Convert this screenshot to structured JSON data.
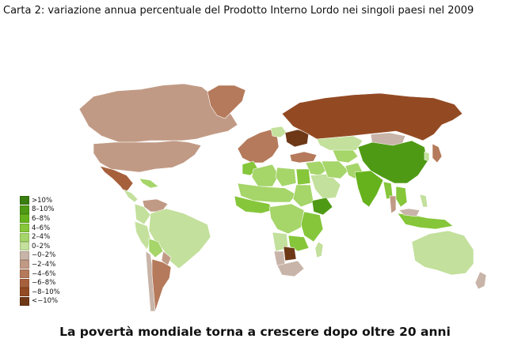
{
  "map": {
    "title": "Carta 2: variazione annua percentuale del Prodotto Interno Lordo nei singoli paesi nel 2009",
    "caption": "La povertà mondiale torna a crescere dopo oltre 20 anni",
    "legend": [
      {
        "label": ">10%",
        "color": "#3a7d10"
      },
      {
        "label": "8–10%",
        "color": "#4f9a14"
      },
      {
        "label": "6–8%",
        "color": "#66b21c"
      },
      {
        "label": "4–6%",
        "color": "#86c63a"
      },
      {
        "label": "2–4%",
        "color": "#a6d56a"
      },
      {
        "label": "0–2%",
        "color": "#c3e09c"
      },
      {
        "label": "−0–2%",
        "color": "#c8b4a8"
      },
      {
        "label": "−2–4%",
        "color": "#c19a85"
      },
      {
        "label": "−4–6%",
        "color": "#b57a5b"
      },
      {
        "label": "−6–8%",
        "color": "#a7603c"
      },
      {
        "label": "−8–10%",
        "color": "#934a23"
      },
      {
        "label": "<−10%",
        "color": "#6e3817"
      }
    ],
    "regions": [
      {
        "name": "Canada",
        "class": "−2–4%",
        "color": "#c19a85"
      },
      {
        "name": "Greenland",
        "class": "−4–6%",
        "color": "#b57a5b"
      },
      {
        "name": "United States",
        "class": "−2–4%",
        "color": "#c19a85"
      },
      {
        "name": "Mexico",
        "class": "−6–8%",
        "color": "#a7603c"
      },
      {
        "name": "Central America",
        "class": "0–2%",
        "color": "#c3e09c"
      },
      {
        "name": "Caribbean",
        "class": "2–4%",
        "color": "#a6d56a"
      },
      {
        "name": "Venezuela",
        "class": "−2–4%",
        "color": "#c19a85"
      },
      {
        "name": "Colombia",
        "class": "0–2%",
        "color": "#c3e09c"
      },
      {
        "name": "Brazil",
        "class": "0–2%",
        "color": "#c3e09c"
      },
      {
        "name": "Peru",
        "class": "0–2%",
        "color": "#c3e09c"
      },
      {
        "name": "Bolivia",
        "class": "2–4%",
        "color": "#a6d56a"
      },
      {
        "name": "Paraguay",
        "class": "−2–4%",
        "color": "#c19a85"
      },
      {
        "name": "Chile",
        "class": "−0–2%",
        "color": "#c8b4a8"
      },
      {
        "name": "Argentina",
        "class": "−4–6%",
        "color": "#b57a5b"
      },
      {
        "name": "Western Europe",
        "class": "−4–6%",
        "color": "#b57a5b"
      },
      {
        "name": "Poland",
        "class": "0–2%",
        "color": "#c3e09c"
      },
      {
        "name": "Ukraine",
        "class": "<−10%",
        "color": "#6e3817"
      },
      {
        "name": "Russia",
        "class": "−8–10%",
        "color": "#934a23"
      },
      {
        "name": "Kazakhstan",
        "class": "0–2%",
        "color": "#c3e09c"
      },
      {
        "name": "Central Asia",
        "class": "2–4%",
        "color": "#a6d56a"
      },
      {
        "name": "Mongolia",
        "class": "−0–2%",
        "color": "#c8b4a8"
      },
      {
        "name": "China",
        "class": "8–10%",
        "color": "#4f9a14"
      },
      {
        "name": "Japan",
        "class": "−4–6%",
        "color": "#b57a5b"
      },
      {
        "name": "Korea",
        "class": "0–2%",
        "color": "#c3e09c"
      },
      {
        "name": "Turkey",
        "class": "−4–6%",
        "color": "#b57a5b"
      },
      {
        "name": "Middle East",
        "class": "2–4%",
        "color": "#a6d56a"
      },
      {
        "name": "Saudi Arabia",
        "class": "0–2%",
        "color": "#c3e09c"
      },
      {
        "name": "Iran",
        "class": "2–4%",
        "color": "#a6d56a"
      },
      {
        "name": "Pakistan",
        "class": "2–4%",
        "color": "#a6d56a"
      },
      {
        "name": "India",
        "class": "6–8%",
        "color": "#66b21c"
      },
      {
        "name": "Myanmar",
        "class": "4–6%",
        "color": "#86c63a"
      },
      {
        "name": "Thailand",
        "class": "−2–4%",
        "color": "#c19a85"
      },
      {
        "name": "Indochina",
        "class": "4–6%",
        "color": "#86c63a"
      },
      {
        "name": "Indonesia",
        "class": "4–6%",
        "color": "#86c63a"
      },
      {
        "name": "Malaysia",
        "class": "−0–2%",
        "color": "#c8b4a8"
      },
      {
        "name": "Philippines",
        "class": "0–2%",
        "color": "#c3e09c"
      },
      {
        "name": "Australia",
        "class": "0–2%",
        "color": "#c3e09c"
      },
      {
        "name": "New Zealand",
        "class": "−0–2%",
        "color": "#c8b4a8"
      },
      {
        "name": "Morocco",
        "class": "4–6%",
        "color": "#86c63a"
      },
      {
        "name": "Algeria",
        "class": "2–4%",
        "color": "#a6d56a"
      },
      {
        "name": "Libya",
        "class": "2–4%",
        "color": "#a6d56a"
      },
      {
        "name": "Egypt",
        "class": "4–6%",
        "color": "#86c63a"
      },
      {
        "name": "Sahel",
        "class": "2–4%",
        "color": "#a6d56a"
      },
      {
        "name": "West Africa",
        "class": "4–6%",
        "color": "#86c63a"
      },
      {
        "name": "Sudan",
        "class": "2–4%",
        "color": "#a6d56a"
      },
      {
        "name": "Ethiopia",
        "class": "8–10%",
        "color": "#4f9a14"
      },
      {
        "name": "Central Africa",
        "class": "2–4%",
        "color": "#a6d56a"
      },
      {
        "name": "East Africa",
        "class": "4–6%",
        "color": "#86c63a"
      },
      {
        "name": "Angola",
        "class": "0–2%",
        "color": "#c3e09c"
      },
      {
        "name": "Zambia",
        "class": "4–6%",
        "color": "#86c63a"
      },
      {
        "name": "Namibia",
        "class": "−0–2%",
        "color": "#c8b4a8"
      },
      {
        "name": "Botswana",
        "class": "<−10%",
        "color": "#6e3817"
      },
      {
        "name": "South Africa",
        "class": "−0–2%",
        "color": "#c8b4a8"
      },
      {
        "name": "Madagascar",
        "class": "0–2%",
        "color": "#c3e09c"
      }
    ]
  }
}
